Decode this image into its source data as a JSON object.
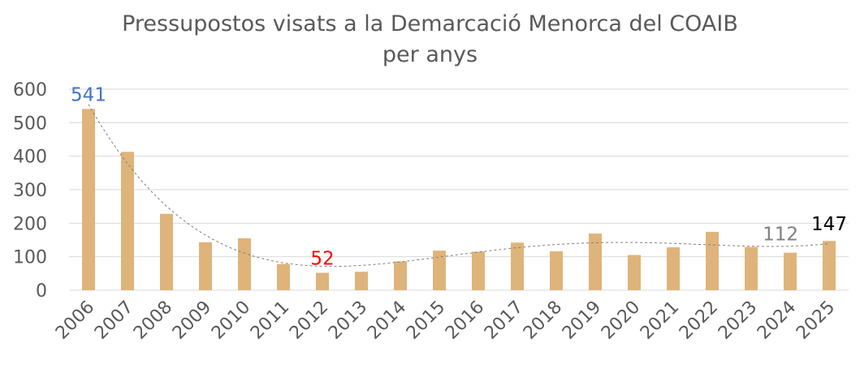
{
  "chart_data": {
    "type": "bar",
    "title_line1": "Pressupostos visats a la Demarcació Menorca del COAIB",
    "title_line2": "per anys",
    "xlabel": "",
    "ylabel": "",
    "ylim": [
      0,
      600
    ],
    "yticks": [
      0,
      100,
      200,
      300,
      400,
      500,
      600
    ],
    "grid": true,
    "categories": [
      "2006",
      "2007",
      "2008",
      "2009",
      "2010",
      "2011",
      "2012",
      "2013",
      "2014",
      "2015",
      "2016",
      "2017",
      "2018",
      "2019",
      "2020",
      "2021",
      "2022",
      "2023",
      "2024",
      "2025"
    ],
    "series": [
      {
        "values": [
          541,
          413,
          228,
          143,
          155,
          78,
          52,
          55,
          86,
          118,
          115,
          142,
          116,
          169,
          105,
          128,
          174,
          129,
          112,
          147
        ]
      }
    ],
    "trendline": {
      "style": "dashed"
    },
    "data_labels": [
      {
        "index": 0,
        "text": "541",
        "color": "#4472C4"
      },
      {
        "index": 6,
        "text": "52",
        "color": "#FF0000"
      },
      {
        "index": 18,
        "text": "112",
        "color": "#7F7F7F"
      },
      {
        "index": 19,
        "text": "147",
        "color": "#000000"
      }
    ],
    "colors": {
      "bar": "#DEB47B",
      "grid": "#D9D9D9",
      "trend": "#7F7F7F",
      "text": "#595959"
    }
  }
}
